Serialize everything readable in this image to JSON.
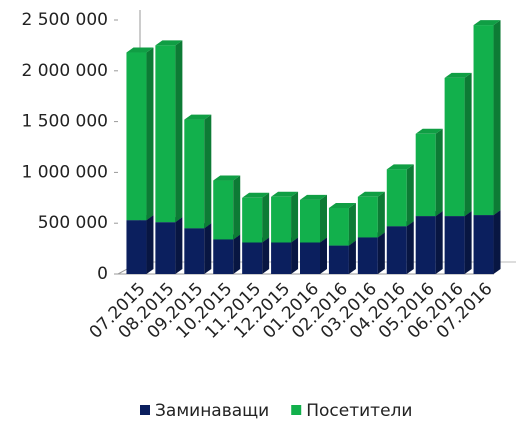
{
  "chart_data": {
    "type": "bar",
    "stacked": true,
    "categories": [
      "07.2015",
      "08.2015",
      "09.2015",
      "10.2015",
      "11.2015",
      "12.2015",
      "01.2016",
      "02.2016",
      "03.2016",
      "04.2016",
      "05.2016",
      "06.2016",
      "07.2016"
    ],
    "series": [
      {
        "name": "Заминаващи",
        "color": "#0b1f5e",
        "values": [
          530000,
          510000,
          450000,
          340000,
          310000,
          310000,
          310000,
          280000,
          360000,
          470000,
          570000,
          570000,
          580000
        ]
      },
      {
        "name": "Посетители",
        "color": "#12b04c",
        "values": [
          1650000,
          1740000,
          1070000,
          580000,
          440000,
          450000,
          420000,
          370000,
          400000,
          560000,
          810000,
          1360000,
          1870000
        ]
      }
    ],
    "ylim": [
      0,
      2500000
    ],
    "yticks": [
      0,
      {
        "value": 500000,
        "label": "500 000"
      },
      {
        "value": 1000000,
        "label": "1 000 000"
      },
      {
        "value": 1500000,
        "label": "1 500 000"
      },
      {
        "value": 2000000,
        "label": "2 000 000"
      },
      {
        "value": 2500000,
        "label": "2 500 000"
      }
    ],
    "legend": "bottom"
  }
}
